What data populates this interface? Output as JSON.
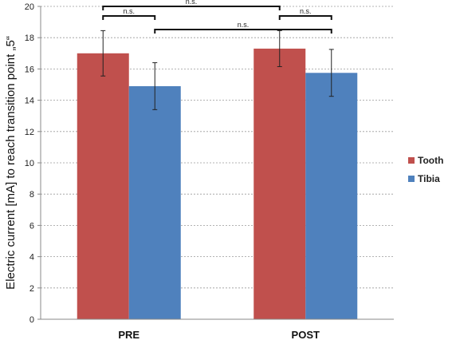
{
  "chart_data": {
    "type": "bar",
    "categories": [
      "PRE",
      "POST"
    ],
    "series": [
      {
        "name": "Tooth",
        "values": [
          17.0,
          17.3
        ],
        "errors": [
          1.45,
          1.15
        ],
        "color": "#c0504d"
      },
      {
        "name": "Tibia",
        "values": [
          14.9,
          15.75
        ],
        "errors": [
          1.5,
          1.5
        ],
        "color": "#4f81bd"
      }
    ],
    "ylabel": "Electric current [mA] to reach transition point „5“",
    "xlabel": "",
    "ylim": [
      0,
      20
    ],
    "yticks": [
      0,
      2,
      4,
      6,
      8,
      10,
      12,
      14,
      16,
      18,
      20
    ],
    "grid": true,
    "legend_position": "right",
    "significance": [
      {
        "from": "PRE-Tooth",
        "to": "POST-Tooth",
        "label": "n.s."
      },
      {
        "from": "PRE-Tooth",
        "to": "PRE-Tibia",
        "label": "n.s."
      },
      {
        "from": "PRE-Tibia",
        "to": "POST-Tibia",
        "label": "n.s."
      },
      {
        "from": "POST-Tooth",
        "to": "POST-Tibia",
        "label": "n.s."
      }
    ]
  }
}
